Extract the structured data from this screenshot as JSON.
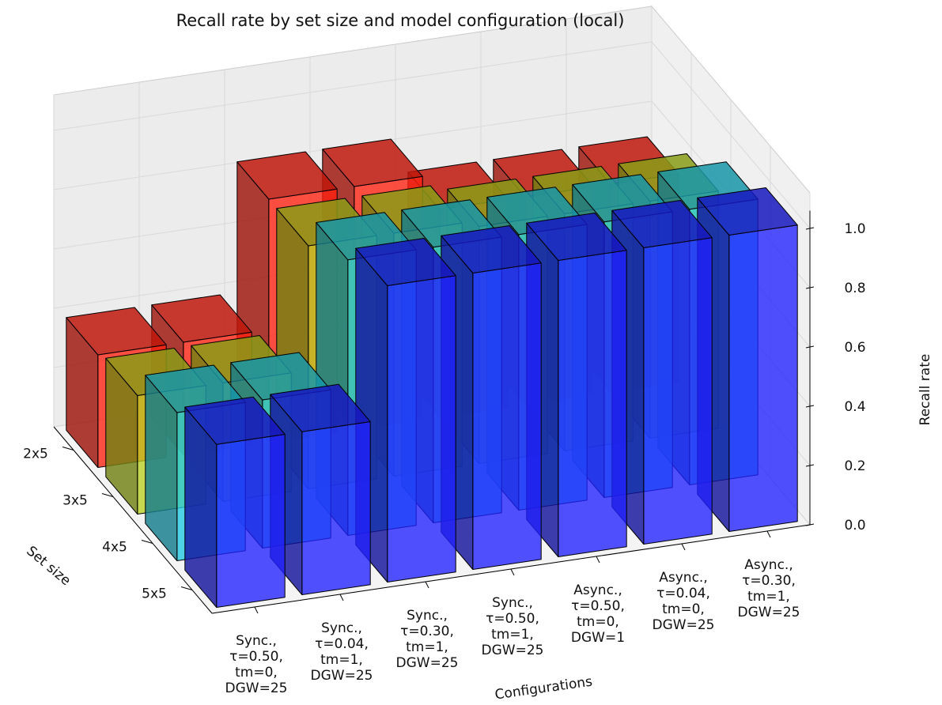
{
  "chart_data": {
    "type": "bar",
    "title": "Recall rate by set size and model configuration (local)",
    "xlabel": "Configurations",
    "ylabel": "Set size",
    "zlabel": "Recall rate",
    "zlim": [
      0,
      1
    ],
    "z_ticks": [
      "0.0",
      "0.2",
      "0.4",
      "0.6",
      "0.8",
      "1.0"
    ],
    "set_sizes": [
      "2x5",
      "3x5",
      "4x5",
      "5x5"
    ],
    "configurations": [
      [
        "Sync.,",
        "τ=0.50,",
        "tm=0,",
        "DGW=25"
      ],
      [
        "Sync.,",
        "τ=0.04,",
        "tm=1,",
        "DGW=25"
      ],
      [
        "Sync.,",
        "τ=0.30,",
        "tm=1,",
        "DGW=25"
      ],
      [
        "Sync.,",
        "τ=0.50,",
        "tm=1,",
        "DGW=25"
      ],
      [
        "Async.,",
        "τ=0.50,",
        "tm=0,",
        "DGW=1"
      ],
      [
        "Async.,",
        "τ=0.04,",
        "tm=0,",
        "DGW=25"
      ],
      [
        "Async.,",
        "τ=0.30,",
        "tm=1,",
        "DGW=25"
      ]
    ],
    "colors": [
      "#2020ff",
      "#20c8e0",
      "#b8d020",
      "#ff2010"
    ],
    "series": [
      {
        "values": [
          0.55,
          0.55,
          1.0,
          1.0,
          1.0,
          1.0,
          1.0
        ]
      },
      {
        "values": [
          0.5,
          0.5,
          0.93,
          0.93,
          0.93,
          0.93,
          0.93
        ]
      },
      {
        "values": [
          0.4,
          0.4,
          0.82,
          0.82,
          0.8,
          0.8,
          0.8
        ]
      },
      {
        "values": [
          0.38,
          0.38,
          0.82,
          0.82,
          0.7,
          0.7,
          0.7
        ]
      }
    ],
    "grid": true
  }
}
